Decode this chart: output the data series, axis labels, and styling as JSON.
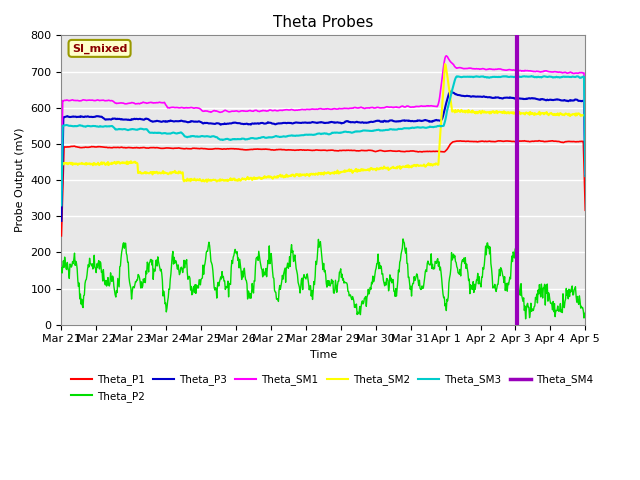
{
  "title": "Theta Probes",
  "xlabel": "Time",
  "ylabel": "Probe Output (mV)",
  "ylim": [
    0,
    800
  ],
  "background_color": "#e8e8e8",
  "annotation_label": "SI_mixed",
  "annotation_color": "#8B0000",
  "annotation_bg": "#ffffcc",
  "annotation_border": "#999900",
  "xtick_labels": [
    "Mar 21",
    "Mar 22",
    "Mar 23",
    "Mar 24",
    "Mar 25",
    "Mar 26",
    "Mar 27",
    "Mar 28",
    "Mar 29",
    "Mar 30",
    "Mar 31",
    "Apr 1",
    "Apr 2",
    "Apr 3",
    "Apr 4",
    "Apr 5"
  ],
  "series": {
    "Theta_P1": {
      "color": "#ff0000",
      "lw": 1.2
    },
    "Theta_P2": {
      "color": "#00dd00",
      "lw": 1.0
    },
    "Theta_P3": {
      "color": "#0000cc",
      "lw": 1.5
    },
    "Theta_SM1": {
      "color": "#ff00ff",
      "lw": 1.2
    },
    "Theta_SM2": {
      "color": "#ffff00",
      "lw": 1.5
    },
    "Theta_SM3": {
      "color": "#00cccc",
      "lw": 1.5
    },
    "Theta_SM4": {
      "color": "#9900bb",
      "lw": 2.5
    }
  },
  "vline_x": 13.05,
  "vline_color": "#9900bb",
  "vline_lw": 3.0
}
